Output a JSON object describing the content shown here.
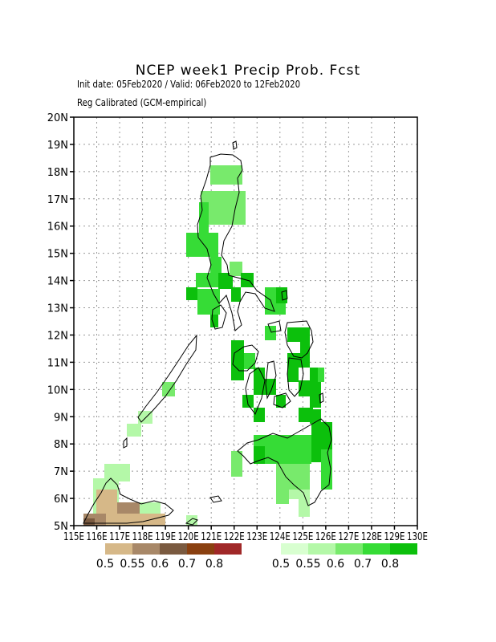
{
  "title": "NCEP week1 Precip Prob. Fcst",
  "subtitle1": "Init date: 05Feb2020 / Valid: 06Feb2020 to 12Feb2020",
  "subtitle2": "Reg Calibrated (GCM-empirical)",
  "map": {
    "lon_range": [
      115,
      130
    ],
    "lat_range": [
      5,
      20
    ],
    "grid": true,
    "lon_ticks": [
      {
        "v": 115,
        "t": "115E"
      },
      {
        "v": 116,
        "t": "116E"
      },
      {
        "v": 117,
        "t": "117E"
      },
      {
        "v": 118,
        "t": "118E"
      },
      {
        "v": 119,
        "t": "119E"
      },
      {
        "v": 120,
        "t": "120E"
      },
      {
        "v": 121,
        "t": "121E"
      },
      {
        "v": 122,
        "t": "122E"
      },
      {
        "v": 123,
        "t": "123E"
      },
      {
        "v": 124,
        "t": "124E"
      },
      {
        "v": 125,
        "t": "125E"
      },
      {
        "v": 126,
        "t": "126E"
      },
      {
        "v": 127,
        "t": "127E"
      },
      {
        "v": 128,
        "t": "128E"
      },
      {
        "v": 129,
        "t": "129E"
      },
      {
        "v": 130,
        "t": "130E"
      }
    ],
    "lat_ticks": [
      {
        "v": 5,
        "t": "5N"
      },
      {
        "v": 6,
        "t": "6N"
      },
      {
        "v": 7,
        "t": "7N"
      },
      {
        "v": 8,
        "t": "8N"
      },
      {
        "v": 9,
        "t": "9N"
      },
      {
        "v": 10,
        "t": "10N"
      },
      {
        "v": 11,
        "t": "11N"
      },
      {
        "v": 12,
        "t": "12N"
      },
      {
        "v": 13,
        "t": "13N"
      },
      {
        "v": 14,
        "t": "14N"
      },
      {
        "v": 15,
        "t": "15N"
      },
      {
        "v": 16,
        "t": "16N"
      },
      {
        "v": 17,
        "t": "17N"
      },
      {
        "v": 18,
        "t": "18N"
      },
      {
        "v": 19,
        "t": "19N"
      },
      {
        "v": 20,
        "t": "20N"
      }
    ]
  },
  "legend": {
    "dry": {
      "colors": [
        "#d6b888",
        "#a88868",
        "#7a5a40",
        "#8a4010",
        "#a02828"
      ],
      "labels": [
        "0.5",
        "0.55",
        "0.6",
        "0.7",
        "0.8"
      ]
    },
    "wet": {
      "colors": [
        "#d8ffd0",
        "#b4f8a8",
        "#78ea6c",
        "#36dc36",
        "#0cc00c"
      ],
      "labels": [
        "0.5",
        "0.55",
        "0.6",
        "0.7",
        "0.8"
      ]
    }
  }
}
